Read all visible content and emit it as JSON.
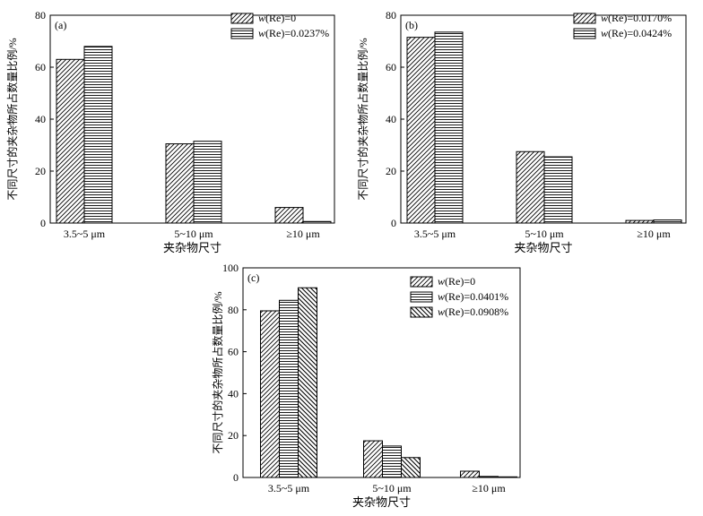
{
  "chart_data": [
    {
      "type": "bar",
      "panel_label": "(a)",
      "categories": [
        "3.5~5 μm",
        "5~10 μm",
        "≥10 μm"
      ],
      "series": [
        {
          "name": "w(Re)=0",
          "values": [
            63,
            30.5,
            6
          ],
          "pattern": "diag-right"
        },
        {
          "name": "w(Re)=0.0237%",
          "values": [
            68,
            31.5,
            0.6
          ],
          "pattern": "horizontal"
        }
      ],
      "xlabel": "夹杂物尺寸",
      "ylabel": "不同尺寸的夹杂物所占数量比例/%",
      "ylim": [
        0,
        80
      ],
      "yticks": [
        "0",
        "20",
        "40",
        "60",
        "80"
      ],
      "grid": false,
      "legend": "top-right"
    },
    {
      "type": "bar",
      "panel_label": "(b)",
      "categories": [
        "3.5~5 μm",
        "5~10 μm",
        "≥10 μm"
      ],
      "series": [
        {
          "name": "w(Re)=0.0170%",
          "values": [
            71.5,
            27.5,
            1
          ],
          "pattern": "diag-right"
        },
        {
          "name": "w(Re)=0.0424%",
          "values": [
            73.5,
            25.5,
            1.2
          ],
          "pattern": "horizontal"
        }
      ],
      "xlabel": "夹杂物尺寸",
      "ylabel": "不同尺寸的夹杂物所占数量比例/%",
      "ylim": [
        0,
        80
      ],
      "yticks": [
        "0",
        "20",
        "40",
        "60",
        "80"
      ],
      "grid": false,
      "legend": "top-right"
    },
    {
      "type": "bar",
      "panel_label": "(c)",
      "categories": [
        "3.5~5 μm",
        "5~10 μm",
        "≥10 μm"
      ],
      "series": [
        {
          "name": "w(Re)=0",
          "values": [
            79.5,
            17.5,
            3
          ],
          "pattern": "diag-right"
        },
        {
          "name": "w(Re)=0.0401%",
          "values": [
            84.5,
            15,
            0.5
          ],
          "pattern": "horizontal"
        },
        {
          "name": "w(Re)=0.0908%",
          "values": [
            90.5,
            9.5,
            0.3
          ],
          "pattern": "diag-left"
        }
      ],
      "xlabel": "夹杂物尺寸",
      "ylabel": "不同尺寸的夹杂物所占数量比例/%",
      "ylim": [
        0,
        100
      ],
      "yticks": [
        "0",
        "20",
        "40",
        "60",
        "80",
        "100"
      ],
      "grid": false,
      "legend": "top-right"
    }
  ]
}
